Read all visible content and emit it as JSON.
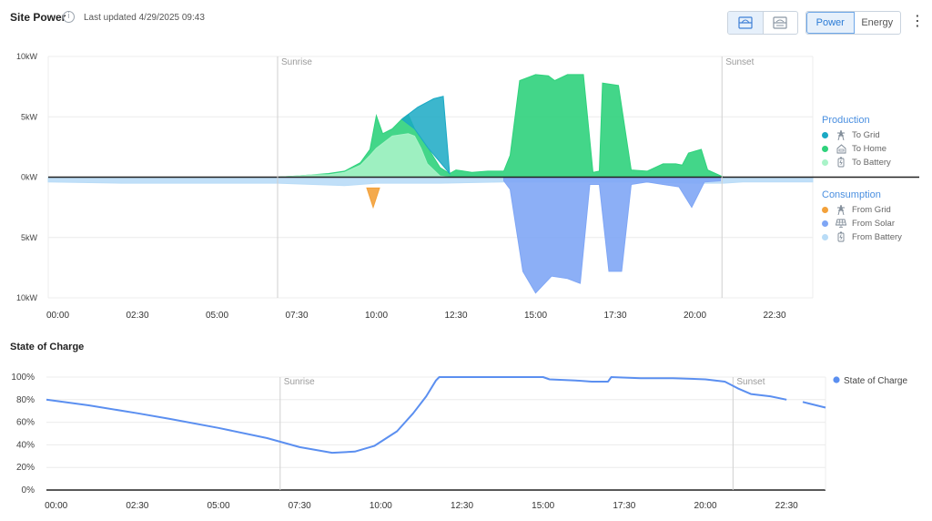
{
  "header": {
    "title": "Site Power",
    "updated": "Last updated 4/29/2025 09:43",
    "view_buttons": [
      {
        "name": "combined-view",
        "icon": "combined-view-icon",
        "active": true
      },
      {
        "name": "split-view",
        "icon": "split-view-icon",
        "active": false
      }
    ],
    "mode_buttons": [
      {
        "label": "Power",
        "active": true
      },
      {
        "label": "Energy",
        "active": false
      }
    ],
    "menu_icon": "kebab-menu-icon"
  },
  "legend": {
    "production_title": "Production",
    "production_items": [
      {
        "label": "To Grid",
        "color": "#1aa9c4",
        "icon": "grid-tower-icon"
      },
      {
        "label": "To Home",
        "color": "#2fd27c",
        "icon": "home-icon"
      },
      {
        "label": "To Battery",
        "color": "#a9f3c8",
        "icon": "battery-icon"
      }
    ],
    "consumption_title": "Consumption",
    "consumption_items": [
      {
        "label": "From Grid",
        "color": "#f3a13a",
        "icon": "grid-tower-icon"
      },
      {
        "label": "From Solar",
        "color": "#7fa6f5",
        "icon": "solar-panel-icon"
      },
      {
        "label": "From Battery",
        "color": "#b9dcf7",
        "icon": "battery-icon"
      }
    ]
  },
  "soc_title": "State of Charge",
  "chart_data": [
    {
      "type": "area",
      "title": "Site Power",
      "x_unit": "hours",
      "x_ticks": [
        "00:00",
        "02:30",
        "05:00",
        "07:30",
        "10:00",
        "12:30",
        "15:00",
        "17:30",
        "20:00",
        "22:30"
      ],
      "y_ticks": [
        "10kW",
        "5kW",
        "0kW",
        "5kW",
        "10kW"
      ],
      "y_range": [
        -10,
        10
      ],
      "x_range": [
        -0.3,
        23.7
      ],
      "annotations": [
        {
          "label": "Sunrise",
          "x": 6.9
        },
        {
          "label": "Sunset",
          "x": 20.85
        }
      ],
      "series": [
        {
          "name": "To Home",
          "color": "#2fd27c",
          "points": [
            [
              6.9,
              0
            ],
            [
              7.5,
              0.1
            ],
            [
              8,
              0.2
            ],
            [
              8.5,
              0.3
            ],
            [
              9,
              0.5
            ],
            [
              9.5,
              1.2
            ],
            [
              9.8,
              2.3
            ],
            [
              10,
              5.1
            ],
            [
              10.2,
              3.6
            ],
            [
              10.5,
              4.0
            ],
            [
              10.8,
              4.8
            ],
            [
              11,
              5.2
            ],
            [
              11.2,
              4.0
            ],
            [
              11.6,
              2.5
            ],
            [
              12,
              0.8
            ],
            [
              12.3,
              0.3
            ],
            [
              12.5,
              0.6
            ],
            [
              13,
              0.4
            ],
            [
              13.5,
              0.5
            ],
            [
              14,
              0.5
            ],
            [
              14.2,
              1.8
            ],
            [
              14.5,
              8.0
            ],
            [
              15,
              8.5
            ],
            [
              15.4,
              8.4
            ],
            [
              15.6,
              8.0
            ],
            [
              16,
              8.5
            ],
            [
              16.5,
              8.5
            ],
            [
              16.8,
              0.4
            ],
            [
              17,
              0.5
            ],
            [
              17.1,
              7.8
            ],
            [
              17.6,
              7.6
            ],
            [
              18,
              0.6
            ],
            [
              18.5,
              0.5
            ],
            [
              19,
              1.1
            ],
            [
              19.4,
              1.1
            ],
            [
              19.6,
              1.0
            ],
            [
              19.8,
              2.0
            ],
            [
              20.2,
              2.3
            ],
            [
              20.4,
              0.6
            ],
            [
              20.9,
              0
            ]
          ]
        },
        {
          "name": "To Battery",
          "color": "#a9f3c8",
          "points": [
            [
              6.9,
              0
            ],
            [
              7.5,
              0.1
            ],
            [
              8,
              0.2
            ],
            [
              8.5,
              0.2
            ],
            [
              9,
              0.4
            ],
            [
              9.5,
              1.0
            ],
            [
              9.8,
              1.8
            ],
            [
              10,
              2.4
            ],
            [
              10.5,
              3.4
            ],
            [
              11,
              3.6
            ],
            [
              11.2,
              3.4
            ],
            [
              11.4,
              2.4
            ],
            [
              11.6,
              1.1
            ],
            [
              12,
              0.1
            ],
            [
              12.3,
              0
            ]
          ]
        },
        {
          "name": "To Grid",
          "color": "#1aa9c4",
          "points": [
            [
              10.8,
              4.8
            ],
            [
              11.3,
              5.8
            ],
            [
              11.8,
              6.5
            ],
            [
              12.1,
              6.7
            ],
            [
              12.3,
              0.3
            ],
            [
              11.6,
              2.5
            ],
            [
              11.2,
              4.0
            ]
          ]
        },
        {
          "name": "From Solar",
          "color": "#7fa6f5",
          "points": [
            [
              14,
              -0.3
            ],
            [
              14.2,
              -1.0
            ],
            [
              14.6,
              -7.8
            ],
            [
              15,
              -9.6
            ],
            [
              15.5,
              -8.2
            ],
            [
              16,
              -8.4
            ],
            [
              16.4,
              -8.8
            ],
            [
              16.7,
              -0.6
            ],
            [
              17,
              -0.6
            ],
            [
              17.3,
              -7.8
            ],
            [
              17.7,
              -7.8
            ],
            [
              18,
              -0.6
            ],
            [
              18.5,
              -0.4
            ],
            [
              19,
              -0.6
            ],
            [
              19.5,
              -0.8
            ],
            [
              19.9,
              -2.5
            ],
            [
              20.3,
              -0.4
            ],
            [
              20.8,
              -0.3
            ]
          ]
        },
        {
          "name": "From Battery",
          "color": "#b9dcf7",
          "points": [
            [
              -0.3,
              -0.4
            ],
            [
              2,
              -0.5
            ],
            [
              4,
              -0.5
            ],
            [
              6.9,
              -0.5
            ],
            [
              8,
              -0.6
            ],
            [
              9,
              -0.7
            ],
            [
              10,
              -0.5
            ],
            [
              12,
              -0.5
            ],
            [
              14,
              -0.4
            ],
            [
              16,
              -0.4
            ],
            [
              18,
              -0.4
            ],
            [
              20,
              -0.5
            ],
            [
              20.9,
              -0.5
            ],
            [
              21.5,
              -0.4
            ],
            [
              23.7,
              -0.4
            ]
          ]
        },
        {
          "name": "From Grid",
          "color": "#f3a13a",
          "points": [
            [
              9.7,
              -0.9
            ],
            [
              9.9,
              -2.5
            ],
            [
              10.1,
              -0.9
            ]
          ]
        }
      ]
    },
    {
      "type": "line",
      "title": "State of Charge",
      "y_ticks": [
        "100%",
        "80%",
        "60%",
        "40%",
        "20%",
        "0%"
      ],
      "y_range": [
        0,
        100
      ],
      "x_ticks": [
        "00:00",
        "02:30",
        "05:00",
        "07:30",
        "10:00",
        "12:30",
        "15:00",
        "17:30",
        "20:00",
        "22:30"
      ],
      "x_range": [
        -0.3,
        23.7
      ],
      "annotations": [
        {
          "label": "Sunrise",
          "x": 6.9
        },
        {
          "label": "Sunset",
          "x": 20.85
        }
      ],
      "series": [
        {
          "name": "State of Charge",
          "color": "#5b8ff0",
          "values": [
            [
              -0.3,
              80
            ],
            [
              1,
              75
            ],
            [
              2.5,
              68
            ],
            [
              3.5,
              63
            ],
            [
              5,
              55
            ],
            [
              6.5,
              46
            ],
            [
              7.5,
              38
            ],
            [
              8.5,
              33
            ],
            [
              9.2,
              34
            ],
            [
              9.8,
              39
            ],
            [
              10.5,
              52
            ],
            [
              11,
              68
            ],
            [
              11.4,
              83
            ],
            [
              11.7,
              97
            ],
            [
              11.8,
              100
            ],
            [
              14,
              100
            ],
            [
              15,
              100
            ],
            [
              15.2,
              98
            ],
            [
              16,
              97
            ],
            [
              16.5,
              96
            ],
            [
              17,
              96
            ],
            [
              17.1,
              100
            ],
            [
              18,
              99
            ],
            [
              19,
              99
            ],
            [
              20,
              98
            ],
            [
              20.6,
              96
            ],
            [
              21,
              90
            ],
            [
              21.4,
              85
            ],
            [
              22,
              83
            ],
            [
              22.5,
              80
            ],
            [
              23,
              78
            ],
            [
              23.7,
              73
            ]
          ]
        }
      ],
      "legend": "right"
    }
  ]
}
